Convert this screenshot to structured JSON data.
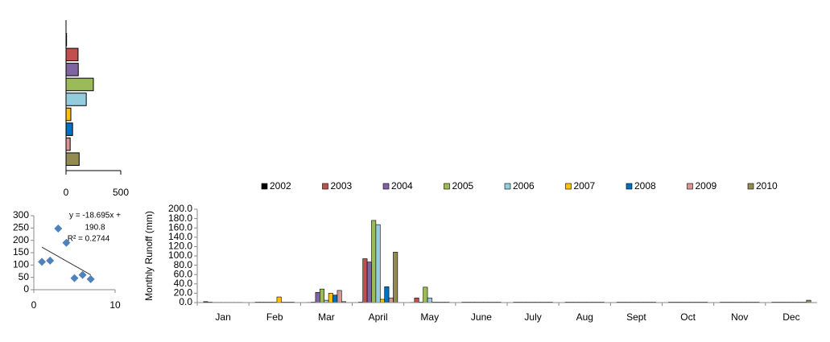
{
  "chart_data": [
    {
      "type": "hbar",
      "values": [
        5,
        110,
        112,
        250,
        185,
        44,
        60,
        38,
        120
      ],
      "colors": [
        "#000000",
        "#c0504d",
        "#8064a2",
        "#9bbb59",
        "#93cddd",
        "#ffc000",
        "#0070c0",
        "#d99694",
        "#948a54"
      ],
      "xlim": [
        0,
        500
      ],
      "xticks": [
        0,
        500
      ]
    },
    {
      "type": "scatter",
      "x": [
        1,
        2,
        3,
        4,
        5,
        6,
        7
      ],
      "values": [
        113,
        118,
        248,
        190,
        47,
        60,
        43
      ],
      "color": "#4f81bd",
      "xlim": [
        0,
        10
      ],
      "xticks": [
        0,
        10
      ],
      "ylim": [
        0,
        300
      ],
      "yticks": [
        0,
        50,
        100,
        150,
        200,
        250,
        300
      ],
      "trendline": {
        "slope": -18.695,
        "intercept": 190.8
      },
      "annotations": [
        "y = -18.695x +",
        "190.8",
        "R² = 0.2744"
      ]
    },
    {
      "type": "bar",
      "y_label": "Monthly  Runoff (mm)",
      "categories": [
        "Jan",
        "Feb",
        "Mar",
        "April",
        "May",
        "June",
        "July",
        "Aug",
        "Sept",
        "Oct",
        "Nov",
        "Dec"
      ],
      "series": [
        {
          "name": "2002",
          "color": "#000000",
          "values": [
            2,
            1,
            0.5,
            1,
            0.5,
            1,
            1,
            1,
            1,
            1,
            1,
            1
          ]
        },
        {
          "name": "2003",
          "color": "#c0504d",
          "values": [
            1,
            1,
            1,
            94,
            10,
            1,
            1,
            1,
            1,
            1,
            1,
            1
          ]
        },
        {
          "name": "2004",
          "color": "#8064a2",
          "values": [
            0.5,
            1,
            22,
            87,
            1,
            1,
            1,
            1,
            1,
            1,
            1,
            1
          ]
        },
        {
          "name": "2005",
          "color": "#9bbb59",
          "values": [
            0.5,
            1,
            29,
            176,
            33,
            1,
            1,
            1,
            1,
            1,
            1,
            1
          ]
        },
        {
          "name": "2006",
          "color": "#93cddd",
          "values": [
            0.5,
            1,
            5,
            167,
            10,
            1,
            1,
            1,
            1,
            1,
            1,
            1
          ]
        },
        {
          "name": "2007",
          "color": "#ffc000",
          "values": [
            0.5,
            12,
            20,
            7,
            1,
            1,
            1,
            1,
            1,
            1,
            1,
            1
          ]
        },
        {
          "name": "2008",
          "color": "#0070c0",
          "values": [
            0.5,
            1,
            16,
            34,
            1,
            1,
            1,
            1,
            1,
            1,
            1,
            1
          ]
        },
        {
          "name": "2009",
          "color": "#d99694",
          "values": [
            0.5,
            1,
            26,
            10,
            1,
            1,
            1,
            1,
            1,
            1,
            1,
            1
          ]
        },
        {
          "name": "2010",
          "color": "#948a54",
          "values": [
            0.5,
            1,
            2,
            108,
            1,
            1,
            1,
            1,
            1,
            1,
            1,
            5
          ]
        }
      ],
      "ylim": [
        0,
        200
      ],
      "yticks": [
        {
          "value": 0,
          "label": "0.0"
        },
        {
          "value": 20,
          "label": "20.0"
        },
        {
          "value": 40,
          "label": "40.0"
        },
        {
          "value": 60,
          "label": "60.0"
        },
        {
          "value": 80,
          "label": "80.0"
        },
        {
          "value": 100,
          "label": "100.0"
        },
        {
          "value": 120,
          "label": "120.0"
        },
        {
          "value": 140,
          "label": "140.0"
        },
        {
          "value": 160,
          "label": "160.0"
        },
        {
          "value": 180,
          "label": "180.0"
        },
        {
          "value": 200,
          "label": "200.0"
        }
      ],
      "legend": "top"
    }
  ]
}
